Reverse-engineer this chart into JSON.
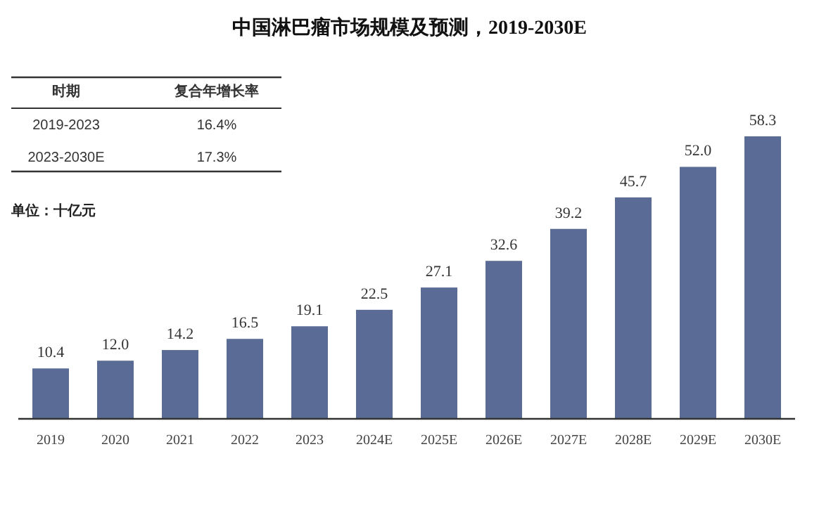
{
  "chart_data": {
    "type": "bar",
    "title": "中国淋巴瘤市场规模及预测，2019-2030E",
    "ylabel": "单位：十亿元",
    "categories": [
      "2019",
      "2020",
      "2021",
      "2022",
      "2023",
      "2024E",
      "2025E",
      "2026E",
      "2027E",
      "2028E",
      "2029E",
      "2030E"
    ],
    "values": [
      10.4,
      12.0,
      14.2,
      16.5,
      19.1,
      22.5,
      27.1,
      32.6,
      39.2,
      45.7,
      52.0,
      58.3
    ],
    "value_labels": [
      "10.4",
      "12.0",
      "14.2",
      "16.5",
      "19.1",
      "22.5",
      "27.1",
      "32.6",
      "39.2",
      "45.7",
      "52.0",
      "58.3"
    ],
    "color": "#5a6b96",
    "annotations": [
      "时期",
      "复合年增长率",
      "2019-2023",
      "16.4%",
      "2023-2030E",
      "17.3%"
    ]
  }
}
